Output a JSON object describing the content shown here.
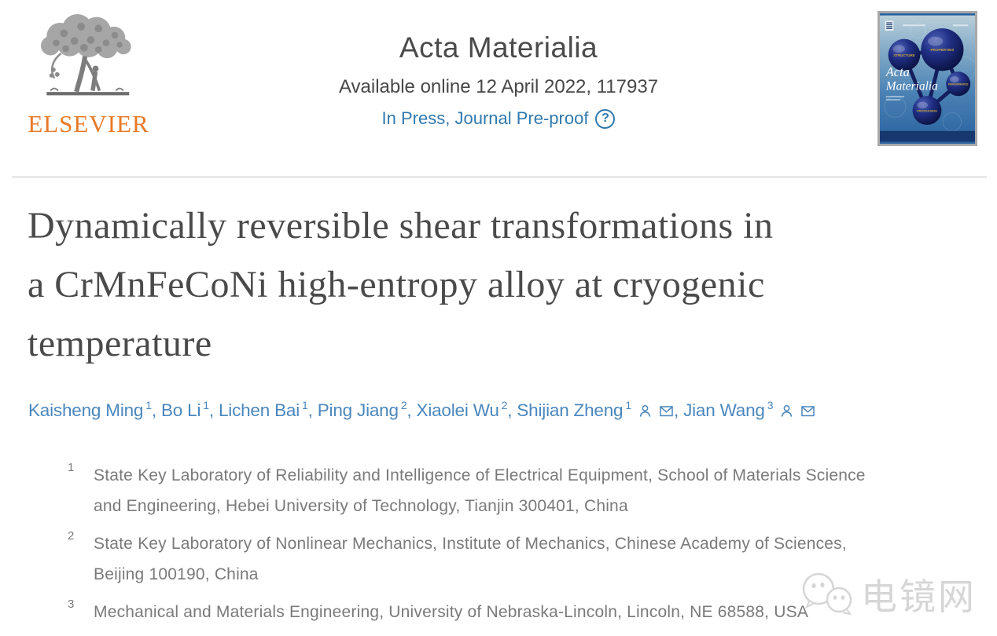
{
  "publisher": {
    "wordmark": "ELSEVIER"
  },
  "header": {
    "journal_title": "Acta Materialia",
    "available_line": "Available online 12 April 2022, 117937",
    "status_link": "In Press, Journal Pre-proof",
    "help_glyph": "?"
  },
  "cover": {
    "title_line1": "Acta",
    "title_line2": "Materialia",
    "sphere_labels": [
      "STRUCTURE",
      "PROPERTIES",
      "PERFORMANCE",
      "PROCESSING"
    ]
  },
  "article": {
    "title_lines": [
      "Dynamically reversible shear transformations in",
      "a CrMnFeCoNi high-entropy alloy at cryogenic",
      "temperature"
    ],
    "authors": [
      {
        "name": "Kaisheng Ming",
        "sup": "1",
        "corresponding": false
      },
      {
        "name": "Bo Li",
        "sup": "1",
        "corresponding": false
      },
      {
        "name": "Lichen Bai",
        "sup": "1",
        "corresponding": false
      },
      {
        "name": "Ping Jiang",
        "sup": "2",
        "corresponding": false
      },
      {
        "name": "Xiaolei Wu",
        "sup": "2",
        "corresponding": false
      },
      {
        "name": "Shijian Zheng",
        "sup": "1",
        "corresponding": true
      },
      {
        "name": "Jian Wang",
        "sup": "3",
        "corresponding": true
      }
    ],
    "affiliations": [
      {
        "sup": "1",
        "lines": [
          "State Key Laboratory of Reliability and Intelligence of Electrical Equipment, School of Materials Science",
          "and Engineering, Hebei University of Technology, Tianjin 300401, China"
        ]
      },
      {
        "sup": "2",
        "lines": [
          "State Key Laboratory of Nonlinear Mechanics, Institute of Mechanics, Chinese Academy of Sciences,",
          "Beijing 100190, China"
        ]
      },
      {
        "sup": "3",
        "lines": [
          "Mechanical and Materials Engineering, University of Nebraska-Lincoln, Lincoln, NE 68588, USA"
        ]
      }
    ]
  },
  "watermark": {
    "text": "电镜网"
  },
  "colors": {
    "elsevier_orange": "#E87A28",
    "link_blue": "#3179AE",
    "author_blue": "#4A87BD",
    "title_gray": "#4A4A4A",
    "affiliation_gray": "#7A7A7A"
  }
}
